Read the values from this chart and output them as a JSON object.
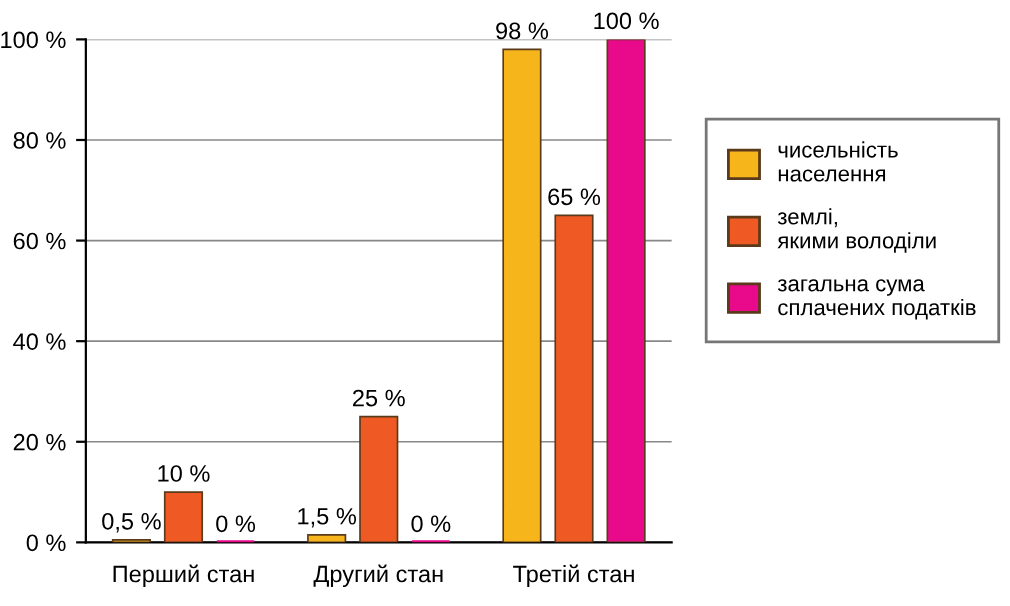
{
  "chart_data": {
    "type": "bar",
    "categories": [
      "Перший стан",
      "Другий стан",
      "Третій стан"
    ],
    "series": [
      {
        "name": "чисельність\nнаселення",
        "color": "#f7b51c",
        "values": [
          0.5,
          1.5,
          98
        ],
        "value_labels": [
          "0,5 %",
          "1,5 %",
          "98 %"
        ]
      },
      {
        "name": "землі,\nякими володіли",
        "color": "#ef5a24",
        "values": [
          10,
          25,
          65
        ],
        "value_labels": [
          "10 %",
          "25 %",
          "65 %"
        ]
      },
      {
        "name": "загальна сума\nсплачених податків",
        "color": "#e80a8a",
        "values": [
          0,
          0,
          100
        ],
        "value_labels": [
          "0 %",
          "0 %",
          "100 %"
        ]
      }
    ],
    "ylim": [
      0,
      100
    ],
    "yticks": [
      {
        "value": 0,
        "label": "0 %"
      },
      {
        "value": 20,
        "label": "20 %"
      },
      {
        "value": 40,
        "label": "40 %"
      },
      {
        "value": 60,
        "label": "60 %"
      },
      {
        "value": 80,
        "label": "80 %"
      },
      {
        "value": 100,
        "label": "100 %"
      }
    ],
    "grid": "y",
    "legend": "right"
  }
}
